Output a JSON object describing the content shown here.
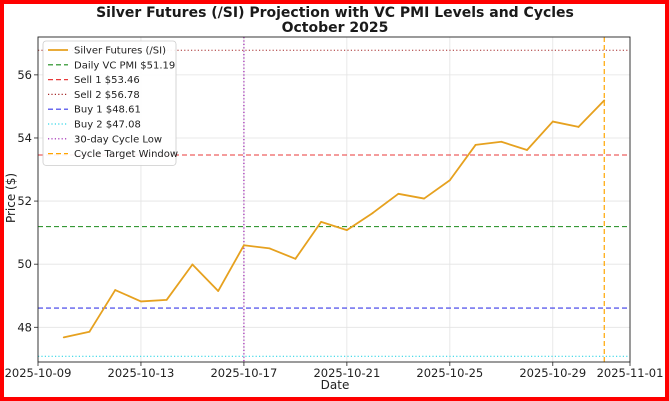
{
  "colors": {
    "border": "#ff0000",
    "price": "#e6a11f",
    "pmi": "#1a8a1a",
    "sell1": "#e83a3a",
    "sell2": "#a52a2a",
    "buy1": "#3a3ae8",
    "buy2": "#33d6e6",
    "cycle_low": "#9b1fb0",
    "cycle_target": "#ffa500"
  },
  "chart_data": {
    "type": "line",
    "title_lines": [
      "Silver Futures (/SI) Projection with VC PMI Levels and Cycles",
      "October 2025"
    ],
    "xlabel": "Date",
    "ylabel": "Price ($)",
    "x_ticks": [
      "2025-10-09",
      "2025-10-13",
      "2025-10-17",
      "2025-10-21",
      "2025-10-25",
      "2025-10-29",
      "2025-11-01"
    ],
    "y_ticks": [
      "48",
      "50",
      "52",
      "54",
      "56"
    ],
    "xlim": [
      "2025-10-09",
      "2025-11-01"
    ],
    "ylim": [
      46.9,
      57.2
    ],
    "grid": true,
    "legend_position": "top-left",
    "series": [
      {
        "name": "Silver Futures (/SI)",
        "x": [
          "2025-10-10",
          "2025-10-11",
          "2025-10-12",
          "2025-10-13",
          "2025-10-14",
          "2025-10-15",
          "2025-10-16",
          "2025-10-17",
          "2025-10-18",
          "2025-10-19",
          "2025-10-20",
          "2025-10-21",
          "2025-10-22",
          "2025-10-23",
          "2025-10-24",
          "2025-10-25",
          "2025-10-26",
          "2025-10-27",
          "2025-10-28",
          "2025-10-29",
          "2025-10-30",
          "2025-10-31"
        ],
        "values": [
          47.68,
          47.86,
          49.18,
          48.82,
          48.87,
          49.99,
          49.15,
          50.6,
          50.5,
          50.17,
          51.34,
          51.08,
          51.62,
          52.23,
          52.08,
          52.66,
          53.78,
          53.88,
          53.62,
          54.52,
          54.35,
          55.19
        ]
      }
    ],
    "horizontal_lines": [
      {
        "name": "Daily VC PMI $51.19",
        "y": 51.19,
        "style": "dashed",
        "color_key": "pmi"
      },
      {
        "name": "Sell 1 $53.46",
        "y": 53.46,
        "style": "dashed",
        "color_key": "sell1"
      },
      {
        "name": "Sell 2 $56.78",
        "y": 56.78,
        "style": "dotted",
        "color_key": "sell2"
      },
      {
        "name": "Buy 1 $48.61",
        "y": 48.61,
        "style": "dashed",
        "color_key": "buy1"
      },
      {
        "name": "Buy 2 $47.08",
        "y": 47.08,
        "style": "dotted",
        "color_key": "buy2"
      }
    ],
    "vertical_lines": [
      {
        "name": "30-day Cycle Low",
        "x": "2025-10-17",
        "style": "dotted",
        "color_key": "cycle_low"
      },
      {
        "name": "Cycle Target Window",
        "x": "2025-10-31",
        "style": "dashed",
        "color_key": "cycle_target"
      }
    ]
  }
}
